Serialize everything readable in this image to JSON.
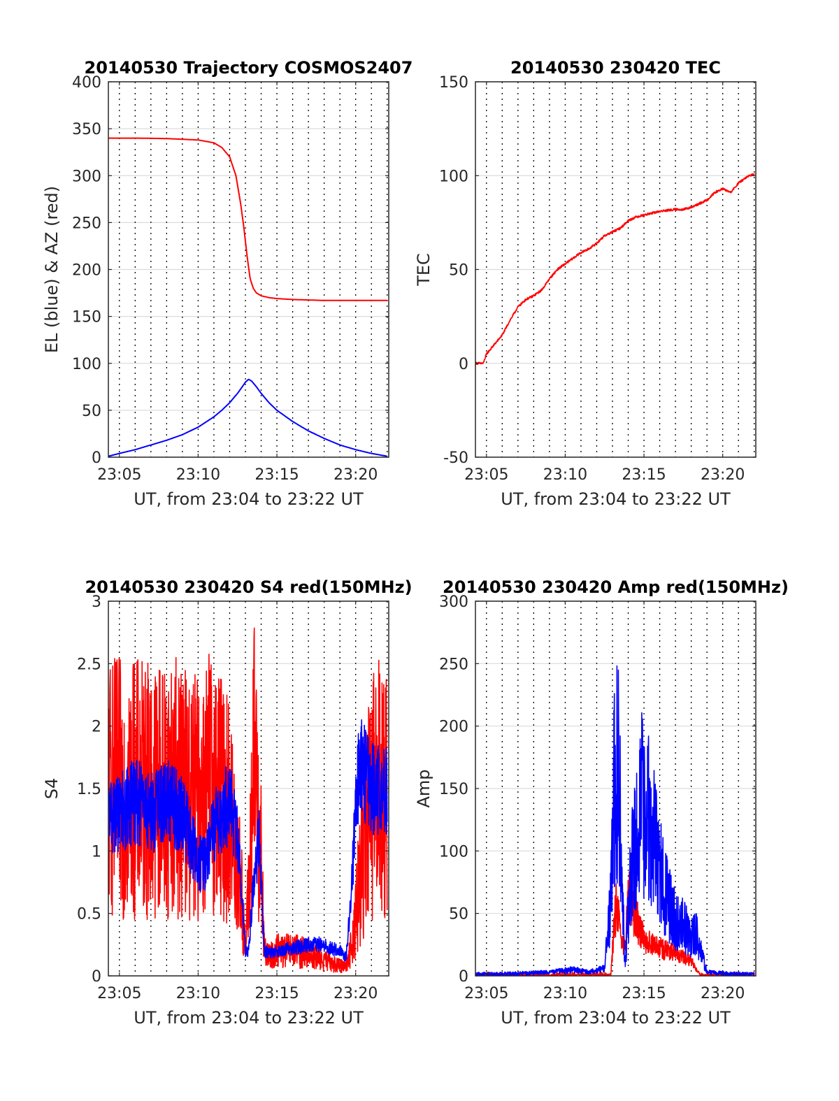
{
  "chart_data": [
    {
      "type": "line",
      "title": "20140530 Trajectory COSMOS2407",
      "xlabel": "UT, from 23:04 to 23:22 UT",
      "ylabel": "EL (blue) & AZ (red)",
      "xlim": [
        4.3,
        22.1
      ],
      "ylim": [
        0,
        400
      ],
      "xticks": [
        5,
        10,
        15,
        20
      ],
      "xtick_labels": [
        "23:05",
        "23:10",
        "23:15",
        "23:20"
      ],
      "yticks": [
        0,
        50,
        100,
        150,
        200,
        250,
        300,
        350,
        400
      ],
      "ytick_labels": [
        "0",
        "50",
        "100",
        "150",
        "200",
        "250",
        "300",
        "350",
        "400"
      ],
      "grid": "on",
      "series": [
        {
          "color": "#ff0000",
          "noise": 0,
          "x": [
            4.3,
            6.0,
            8.0,
            10.0,
            11.0,
            11.5,
            12.0,
            12.4,
            12.7,
            12.9,
            13.1,
            13.3,
            13.5,
            13.7,
            14.0,
            14.5,
            15.0,
            16.0,
            17.0,
            18.0,
            20.0,
            22.0
          ],
          "y": [
            340,
            340,
            339.5,
            338,
            335,
            330,
            320,
            300,
            270,
            245,
            215,
            190,
            180,
            175,
            172,
            170,
            169,
            168,
            167.5,
            167,
            167,
            167
          ]
        },
        {
          "color": "#0000ff",
          "noise": 0,
          "x": [
            4.3,
            5,
            6,
            7,
            8,
            9,
            10,
            11,
            11.5,
            12,
            12.5,
            12.8,
            13.0,
            13.2,
            13.4,
            13.7,
            14,
            14.5,
            15,
            16,
            17,
            18,
            19,
            20,
            21,
            22
          ],
          "y": [
            1,
            4,
            8,
            13,
            18,
            24,
            32,
            43,
            50,
            58,
            68,
            75,
            80,
            83,
            81,
            75,
            68,
            58,
            50,
            38,
            28,
            20,
            13,
            8,
            4,
            1
          ]
        }
      ]
    },
    {
      "type": "line",
      "title": "20140530 230420 TEC",
      "xlabel": "UT, from 23:04 to 23:22 UT",
      "ylabel": "TEC",
      "xlim": [
        4.3,
        22.1
      ],
      "ylim": [
        -50,
        150
      ],
      "xticks": [
        5,
        10,
        15,
        20
      ],
      "xtick_labels": [
        "23:05",
        "23:10",
        "23:15",
        "23:20"
      ],
      "yticks": [
        -50,
        0,
        50,
        100,
        150
      ],
      "ytick_labels": [
        "-50",
        "0",
        "50",
        "100",
        "150"
      ],
      "grid": "on",
      "series": [
        {
          "color": "#ff0000",
          "noise": 0.6,
          "x": [
            4.3,
            4.8,
            5.0,
            5.5,
            6.0,
            6.5,
            7.0,
            7.5,
            8.0,
            8.5,
            9.0,
            9.5,
            10.0,
            10.5,
            11.0,
            11.5,
            12.0,
            12.5,
            13.0,
            13.5,
            14.0,
            14.5,
            15.0,
            16.0,
            17.0,
            17.5,
            18.0,
            19.0,
            19.5,
            20.0,
            20.5,
            21.0,
            21.5,
            22.0
          ],
          "y": [
            0,
            0,
            5,
            10,
            15,
            23,
            30,
            34,
            36,
            39,
            45,
            50,
            53,
            56,
            59,
            61,
            64,
            68,
            70,
            72,
            76,
            78,
            79,
            81,
            82,
            82,
            83,
            87,
            91,
            93,
            91,
            96,
            99,
            101
          ]
        }
      ]
    },
    {
      "type": "line",
      "title": "20140530 230420 S4 red(150MHz)",
      "xlabel": "UT, from 23:04 to 23:22 UT",
      "ylabel": "S4",
      "xlim": [
        4.3,
        22.1
      ],
      "ylim": [
        0,
        3
      ],
      "xticks": [
        5,
        10,
        15,
        20
      ],
      "xtick_labels": [
        "23:05",
        "23:10",
        "23:15",
        "23:20"
      ],
      "yticks": [
        0,
        0.5,
        1,
        1.5,
        2,
        2.5,
        3
      ],
      "ytick_labels": [
        "0",
        "0.5",
        "1",
        "1.5",
        "2",
        "2.5",
        "3"
      ],
      "grid": "on",
      "series": [
        {
          "color": "#ff0000",
          "noise": 1.4,
          "x": [
            4.3,
            5,
            6,
            7,
            8,
            9,
            10,
            10.5,
            11,
            11.5,
            12,
            12.5,
            12.8,
            13.0,
            13.3,
            13.6,
            13.9,
            14.2,
            14.5,
            15,
            16,
            17,
            18,
            19,
            19.5,
            19.8,
            20.1,
            20.4,
            20.7,
            21,
            21.5,
            22
          ],
          "y": [
            1.5,
            1.5,
            1.5,
            1.5,
            1.5,
            1.5,
            1.4,
            1.5,
            1.6,
            1.4,
            1.3,
            0.9,
            0.6,
            0.2,
            0.9,
            1.8,
            1.2,
            0.2,
            0.15,
            0.2,
            0.2,
            0.18,
            0.12,
            0.08,
            0.1,
            0.3,
            0.6,
            0.9,
            1.2,
            1.4,
            1.5,
            1.5
          ]
        },
        {
          "color": "#0000ff",
          "noise": 0.5,
          "x": [
            4.3,
            5,
            6,
            7,
            8,
            9,
            10,
            10.5,
            11,
            11.5,
            12,
            12.5,
            12.8,
            13.0,
            13.2,
            13.6,
            13.9,
            14.2,
            14.5,
            15,
            16,
            17,
            18,
            18.5,
            19,
            19.4,
            19.7,
            20.0,
            20.3,
            20.6,
            21,
            21.5,
            22
          ],
          "y": [
            1.3,
            1.3,
            1.4,
            1.3,
            1.4,
            1.3,
            0.9,
            0.9,
            1.2,
            1.3,
            1.4,
            1.1,
            0.6,
            0.2,
            0.2,
            0.9,
            1.1,
            0.2,
            0.18,
            0.2,
            0.22,
            0.25,
            0.25,
            0.22,
            0.2,
            0.15,
            0.6,
            1.3,
            1.8,
            1.6,
            1.5,
            1.5,
            1.5
          ]
        }
      ]
    },
    {
      "type": "line",
      "title": "20140530 230420 Amp red(150MHz)",
      "xlabel": "UT, from 23:04 to 23:22 UT",
      "ylabel": "Amp",
      "xlim": [
        4.3,
        22.1
      ],
      "ylim": [
        0,
        300
      ],
      "xticks": [
        5,
        10,
        15,
        20
      ],
      "xtick_labels": [
        "23:05",
        "23:10",
        "23:15",
        "23:20"
      ],
      "yticks": [
        0,
        50,
        100,
        150,
        200,
        250,
        300
      ],
      "ytick_labels": [
        "0",
        "50",
        "100",
        "150",
        "200",
        "250",
        "300"
      ],
      "grid": "on",
      "series": [
        {
          "color": "#ff0000",
          "noise": 0.8,
          "x": [
            4.3,
            12.6,
            12.9,
            13.1,
            13.3,
            13.5,
            13.8,
            14.0,
            14.3,
            14.7,
            15.0,
            15.5,
            16.0,
            17.0,
            18.0,
            18.3,
            18.6,
            22.0
          ],
          "y": [
            0,
            0,
            1,
            40,
            60,
            30,
            20,
            70,
            50,
            40,
            30,
            25,
            22,
            18,
            12,
            6,
            1,
            0
          ]
        },
        {
          "color": "#0000ff",
          "noise": 1.1,
          "x": [
            4.3,
            7.5,
            9.0,
            10.5,
            11.5,
            12.5,
            12.9,
            13.1,
            13.4,
            13.6,
            13.8,
            14.0,
            14.3,
            14.6,
            14.9,
            15.2,
            15.6,
            16.0,
            16.5,
            17.0,
            17.5,
            18.0,
            18.3,
            18.6,
            19.0,
            20.0,
            22.0
          ],
          "y": [
            1,
            2,
            3,
            5,
            3,
            6,
            60,
            150,
            170,
            70,
            10,
            50,
            95,
            110,
            140,
            130,
            110,
            85,
            60,
            45,
            40,
            30,
            35,
            20,
            3,
            2,
            1
          ]
        }
      ]
    }
  ]
}
